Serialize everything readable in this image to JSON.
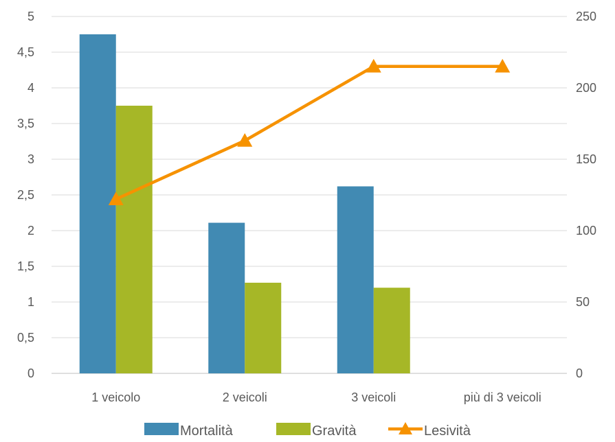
{
  "chart_data": {
    "type": "bar",
    "title": "",
    "categories": [
      "1 veicolo",
      "2 veicoli",
      "3 veicoli",
      "più di 3 veicoli"
    ],
    "y_left": {
      "min": 0,
      "max": 5,
      "step": 0.5,
      "tick_labels": [
        "0",
        "0,5",
        "1",
        "1,5",
        "2",
        "2,5",
        "3",
        "3,5",
        "4",
        "4,5",
        "5"
      ]
    },
    "y_right": {
      "min": 0,
      "max": 250,
      "step": 50,
      "tick_labels": [
        "0",
        "50",
        "100",
        "150",
        "200",
        "250"
      ]
    },
    "grid": true,
    "legend_position": "bottom",
    "series": [
      {
        "name": "Mortalità",
        "type": "bar",
        "axis": "left",
        "color": "#418AB3",
        "values": [
          4.75,
          2.11,
          2.62,
          null
        ]
      },
      {
        "name": "Gravità",
        "type": "bar",
        "axis": "left",
        "color": "#A6B727",
        "values": [
          3.75,
          1.27,
          1.2,
          null
        ]
      },
      {
        "name": "Lesività",
        "type": "line",
        "axis": "right",
        "marker": "triangle",
        "color": "#F69200",
        "values": [
          122,
          163,
          215,
          215
        ]
      }
    ]
  }
}
